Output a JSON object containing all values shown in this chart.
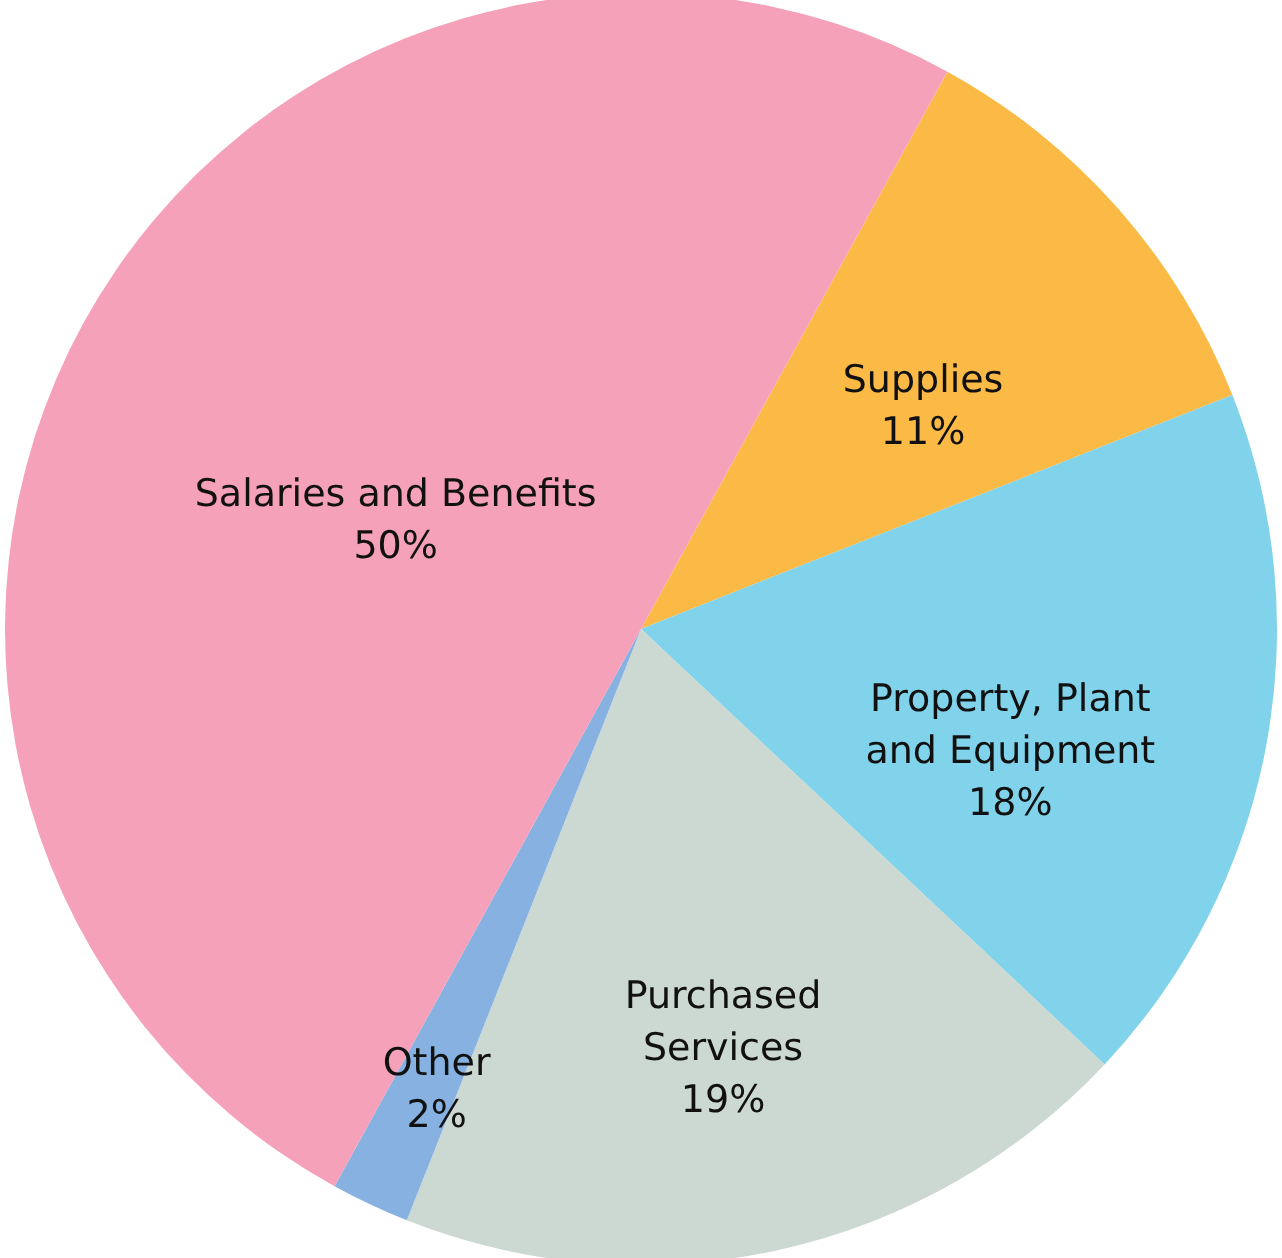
{
  "chart_data": {
    "type": "pie",
    "categories": [
      "Supplies",
      "Property, Plant and Equipment",
      "Purchased Services",
      "Other",
      "Salaries and Benefits"
    ],
    "values": [
      11,
      18,
      19,
      2,
      50
    ],
    "colors": [
      "#fbb945",
      "#80d3ea",
      "#ccd8d2",
      "#86b1e1",
      "#f4a1b9"
    ],
    "value_labels": [
      "11%",
      "18%",
      "19%",
      "2%",
      "50%"
    ]
  }
}
